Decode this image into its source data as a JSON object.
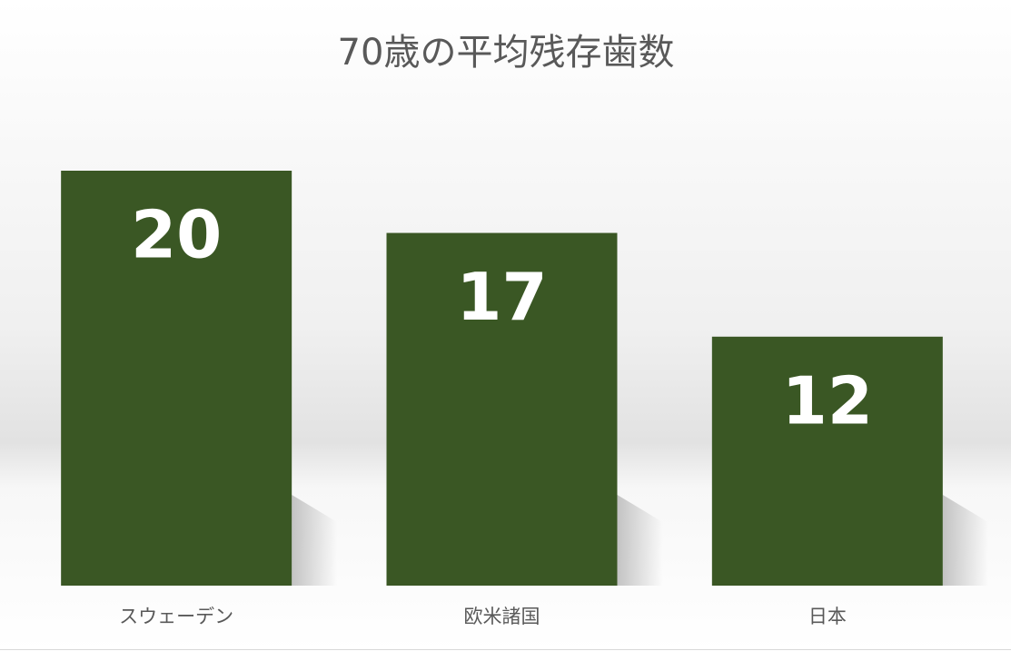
{
  "chart_data": {
    "type": "bar",
    "title": "70歳の平均残存歯数",
    "categories": [
      "スウェーデン",
      "欧米諸国",
      "日本"
    ],
    "values": [
      20,
      17,
      12
    ],
    "color": "#3a5724"
  }
}
